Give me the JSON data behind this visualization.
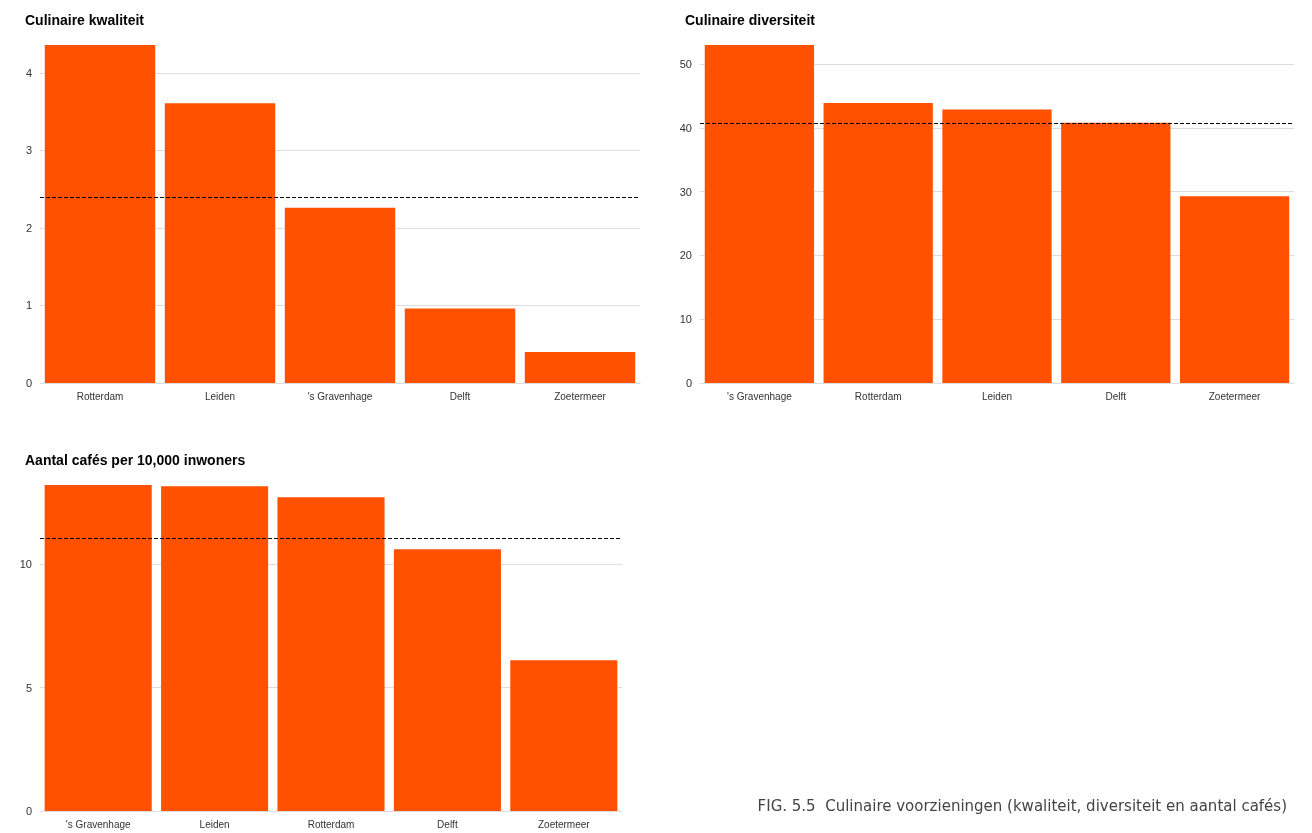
{
  "chart_data": [
    {
      "type": "bar",
      "title": "Culinaire kwaliteit",
      "categories": [
        "Rotterdam",
        "Leiden",
        "'s Gravenhage",
        "Delft",
        "Zoetermeer"
      ],
      "values": [
        4.36,
        3.61,
        2.26,
        0.96,
        0.4
      ],
      "color": "#ff5100",
      "ylim": [
        0,
        4.36
      ],
      "yticks": [
        0,
        1,
        2,
        3,
        4
      ],
      "grid": "y",
      "ref_lines": [
        {
          "axis": "y",
          "value": 2.39,
          "color": "#000000",
          "line_style": "dashed"
        }
      ]
    },
    {
      "type": "bar",
      "title": "Culinaire diversiteit",
      "categories": [
        "'s Gravenhage",
        "Rotterdam",
        "Leiden",
        "Delft",
        "Zoetermeer"
      ],
      "values": [
        53,
        43.9,
        42.9,
        40.8,
        29.3
      ],
      "color": "#ff5100",
      "ylim": [
        0,
        53
      ],
      "yticks": [
        0,
        10,
        20,
        30,
        40,
        50
      ],
      "grid": "y",
      "ref_lines": [
        {
          "axis": "y",
          "value": 40.8,
          "color": "#000000",
          "line_style": "dashed"
        }
      ]
    },
    {
      "type": "bar",
      "title": "Aantal cafés per 10,000 inwoners",
      "categories": [
        "'s Gravenhage",
        "Leiden",
        "Rotterdam",
        "Delft",
        "Zoetermeer"
      ],
      "values": [
        13.2,
        13.15,
        12.7,
        10.6,
        6.1
      ],
      "color": "#ff5100",
      "ylim": [
        0,
        13.2
      ],
      "yticks": [
        0,
        5,
        10
      ],
      "grid": "y",
      "ref_lines": [
        {
          "axis": "y",
          "value": 11.05,
          "color": "#000000",
          "line_style": "dashed"
        }
      ],
      "annotations": [
        "FIG. 5.5  Culinaire voorzieningen (kwaliteit, diversiteit en aantal cafés)"
      ]
    }
  ]
}
